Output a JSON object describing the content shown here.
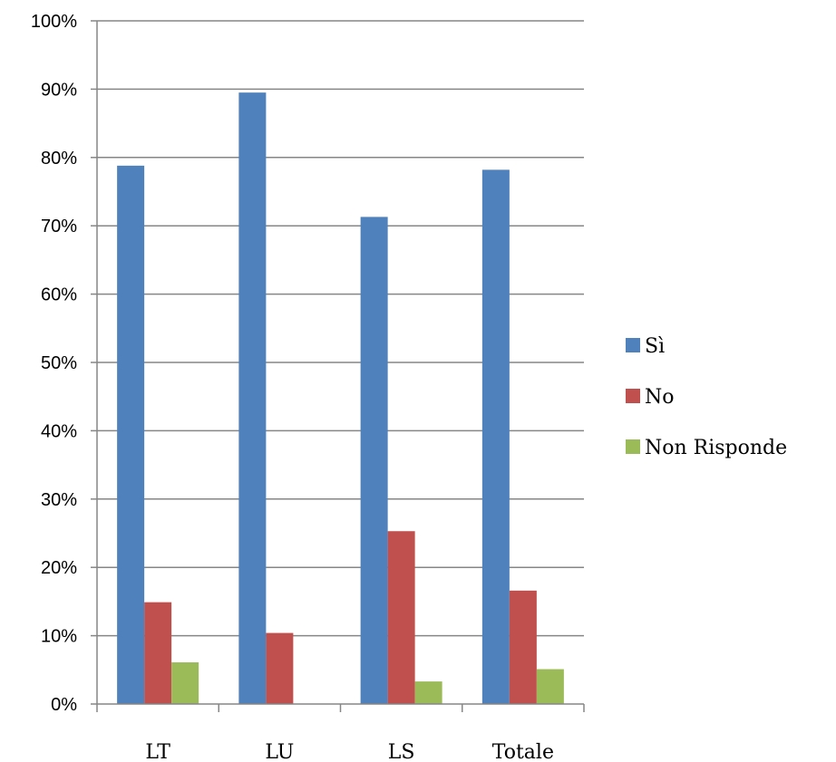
{
  "chart_data": {
    "type": "bar",
    "categories": [
      "LT",
      "LU",
      "LS",
      "Totale"
    ],
    "series": [
      {
        "name": "Sì",
        "color": "#4F81BD",
        "values": [
          78.8,
          89.5,
          71.3,
          78.2
        ]
      },
      {
        "name": "No",
        "color": "#C0504D",
        "values": [
          14.9,
          10.4,
          25.3,
          16.6
        ]
      },
      {
        "name": "Non Risponde",
        "color": "#9BBB59",
        "values": [
          6.1,
          0,
          3.3,
          5.1
        ]
      }
    ],
    "ylim": [
      0,
      100
    ],
    "yticks": [
      "0%",
      "10%",
      "20%",
      "30%",
      "40%",
      "50%",
      "60%",
      "70%",
      "80%",
      "90%",
      "100%"
    ],
    "grid": true,
    "legend_position": "right"
  }
}
